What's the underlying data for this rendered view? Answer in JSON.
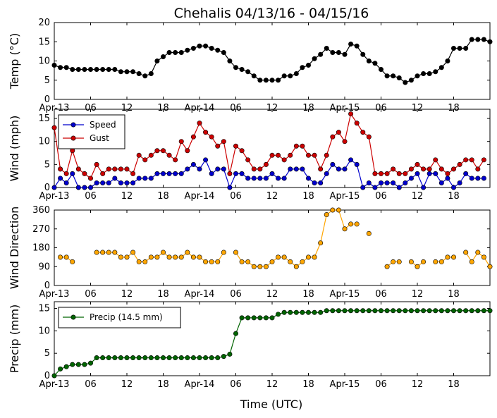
{
  "title": "Chehalis 04/13/16 - 04/15/16",
  "xlabel": "Time (UTC)",
  "colors": {
    "temp": "#000000",
    "speed": "#0000cc",
    "gust": "#cc0000",
    "direction": "#ffa500",
    "precip": "#006400"
  },
  "chart_data": [
    {
      "type": "line",
      "ylabel": "Temp (°C)",
      "ylim": [
        0,
        20
      ],
      "yticks": [
        "0",
        "5",
        "10",
        "15",
        "20"
      ],
      "xticks": [
        "Apr-13",
        "06",
        "12",
        "18",
        "Apr-14",
        "06",
        "12",
        "18",
        "Apr-15",
        "06",
        "12",
        "18"
      ],
      "x_unit": "hours since Apr-13 00 UTC",
      "start_hour": 0,
      "step_hours": 1,
      "series": [
        {
          "values": [
            8.9,
            8.3,
            8.3,
            7.8,
            7.8,
            7.8,
            7.8,
            7.8,
            7.8,
            7.8,
            7.8,
            7.2,
            7.2,
            7.2,
            6.7,
            6.1,
            6.7,
            10,
            11.1,
            12.2,
            12.2,
            12.2,
            12.8,
            13.3,
            13.9,
            13.9,
            13.3,
            12.8,
            12.2,
            10,
            8.3,
            7.8,
            7.2,
            6.1,
            5,
            5,
            5,
            5,
            6.1,
            6.1,
            6.7,
            8.3,
            8.9,
            10.6,
            11.7,
            13.3,
            12.2,
            12.2,
            11.7,
            14.4,
            13.9,
            11.7,
            10,
            9.4,
            7.8,
            6.1,
            6.1,
            5.6,
            4.4,
            5,
            6.1,
            6.7,
            6.7,
            7.2,
            8.3,
            10,
            13.3,
            13.3,
            13.3,
            15.6,
            15.6,
            15.6,
            15
          ]
        }
      ]
    },
    {
      "type": "line",
      "ylabel": "Wind (mph)",
      "ylim": [
        0,
        17
      ],
      "yticks": [
        "0",
        "5",
        "10",
        "15"
      ],
      "xticks": [
        "Apr-13",
        "06",
        "12",
        "18",
        "Apr-14",
        "06",
        "12",
        "18",
        "Apr-15",
        "06",
        "12",
        "18"
      ],
      "legend": "top-left",
      "start_hour": 0,
      "step_hours": 1,
      "series": [
        {
          "name": "Speed",
          "values": [
            0,
            2,
            1,
            3,
            0,
            0,
            0,
            1,
            1,
            1,
            2,
            1,
            1,
            1,
            2,
            2,
            2,
            3,
            3,
            3,
            3,
            3,
            4,
            5,
            4,
            6,
            3,
            4,
            4,
            0,
            3,
            3,
            2,
            2,
            2,
            2,
            3,
            2,
            2,
            4,
            4,
            4,
            2,
            1,
            1,
            3,
            5,
            4,
            4,
            6,
            5,
            0,
            1,
            0,
            1,
            1,
            1,
            0,
            1,
            2,
            3,
            0,
            3,
            3,
            1,
            2,
            0,
            1,
            3,
            2,
            2,
            2
          ]
        },
        {
          "name": "Gust",
          "values": [
            13,
            4,
            3,
            8,
            4,
            3,
            2,
            5,
            3,
            4,
            4,
            4,
            4,
            3,
            7,
            6,
            7,
            8,
            8,
            7,
            6,
            10,
            8,
            11,
            14,
            12,
            11,
            9,
            10,
            3,
            9,
            8,
            6,
            4,
            4,
            5,
            7,
            7,
            6,
            7,
            9,
            9,
            7,
            7,
            4,
            7,
            11,
            12,
            10,
            16,
            14,
            12,
            11,
            3,
            3,
            3,
            4,
            3,
            3,
            4,
            5,
            4,
            4,
            6,
            4,
            3,
            4,
            5,
            6,
            6,
            4,
            6
          ]
        }
      ]
    },
    {
      "type": "scatter",
      "ylabel": "Wind Direction",
      "ylim": [
        0,
        360
      ],
      "yticks": [
        "0",
        "90",
        "180",
        "270",
        "360"
      ],
      "xticks": [
        "Apr-13",
        "06",
        "12",
        "18",
        "Apr-14",
        "06",
        "12",
        "18",
        "Apr-15",
        "06",
        "12",
        "18"
      ],
      "start_hour": 0,
      "step_hours": 1,
      "series": [
        {
          "values": [
            null,
            135,
            135,
            113,
            null,
            null,
            null,
            158,
            158,
            158,
            158,
            135,
            135,
            158,
            113,
            113,
            135,
            135,
            158,
            135,
            135,
            135,
            158,
            135,
            135,
            113,
            113,
            113,
            158,
            null,
            158,
            113,
            113,
            90,
            90,
            90,
            113,
            135,
            135,
            113,
            90,
            113,
            135,
            135,
            203,
            338,
            360,
            360,
            270,
            293,
            293,
            null,
            248,
            null,
            null,
            90,
            113,
            113,
            null,
            113,
            90,
            113,
            null,
            113,
            113,
            135,
            135,
            null,
            158,
            113,
            158,
            135,
            90
          ]
        }
      ]
    },
    {
      "type": "line",
      "ylabel": "Precip (mm)",
      "ylim": [
        0,
        16.5
      ],
      "yticks": [
        "0",
        "5",
        "10",
        "15"
      ],
      "xticks": [
        "Apr-13",
        "06",
        "12",
        "18",
        "Apr-14",
        "06",
        "12",
        "18",
        "Apr-15",
        "06",
        "12",
        "18"
      ],
      "legend": "top-left",
      "start_hour": 0,
      "step_hours": 1,
      "series": [
        {
          "name": "Precip (14.5 mm)",
          "values": [
            0,
            1.5,
            2,
            2.5,
            2.5,
            2.5,
            2.8,
            4,
            4,
            4,
            4,
            4,
            4,
            4,
            4,
            4,
            4,
            4,
            4,
            4,
            4,
            4,
            4,
            4,
            4,
            4,
            4,
            4,
            4.3,
            4.8,
            9.4,
            12.9,
            12.9,
            12.9,
            12.9,
            12.9,
            12.9,
            13.7,
            14.1,
            14.1,
            14.1,
            14.1,
            14.1,
            14.1,
            14.1,
            14.5,
            14.5,
            14.5,
            14.5,
            14.5,
            14.5,
            14.5,
            14.5,
            14.5,
            14.5,
            14.5,
            14.5,
            14.5,
            14.5,
            14.5,
            14.5,
            14.5,
            14.5,
            14.5,
            14.5,
            14.5,
            14.5,
            14.5,
            14.5,
            14.5,
            14.5,
            14.5,
            14.5
          ]
        }
      ]
    }
  ]
}
